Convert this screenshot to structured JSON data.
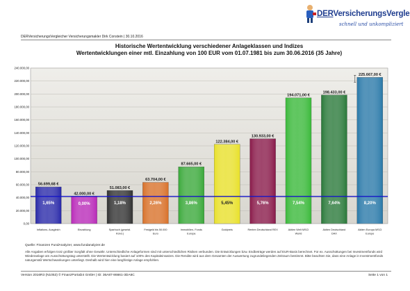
{
  "logo": {
    "prefix": "DER",
    "brand": "VersicherungsVergleicher",
    "tagline": "schnell und unkompliziert"
  },
  "header": {
    "company": "DERVersicherungsVergleicher Versicherungsmakler Dirk Constein | 30.10.2016"
  },
  "chart_data": {
    "type": "bar",
    "title": "Historische Wertentwicklung verschiedener Anlageklassen und Indizes",
    "subtitle": "Wertentwicklungen einer mtl. Einzahlung von 100 EUR vom 01.07.1981 bis zum 30.06.2016 (35 Jahre)",
    "ylim": [
      0,
      240000
    ],
    "yticks": [
      "0,00",
      "20.000,00",
      "40.000,00",
      "60.000,00",
      "80.000,00",
      "100.000,00",
      "120.000,00",
      "140.000,00",
      "160.000,00",
      "180.000,00",
      "200.000,00",
      "220.000,00",
      "240.000,00"
    ],
    "grid": true,
    "reference_line": 42000,
    "categories": [
      "Inflations- Ausgleich",
      "Einzahlung",
      "Sparbuch (gesetzl. Künd.)",
      "Festgeld bis 50.000 Euro",
      "Immobilien- Fonds Europa",
      "Goldpreis",
      "Renten Deutschland REX",
      "Aktien Welt MSCI World",
      "Aktien Deutschland DAX",
      "Aktien Europa MSCI Europe"
    ],
    "values": [
      56699.68,
      42000,
      51083,
      63704,
      87665,
      122384,
      130933,
      194071,
      198433,
      225667
    ],
    "value_labels": [
      "56.699,68 €",
      "42.000,00 €",
      "51.083,00 €",
      "63.704,00 €",
      "87.665,00 €",
      "122.384,00 €",
      "130.933,00 €",
      "194.071,00 €",
      "198.433,00 €",
      "225.667,00 €"
    ],
    "rates": [
      "1,65%",
      "0,00%",
      "1,18%",
      "2,26%",
      "3,86%",
      "5,45%",
      "5,76%",
      "7,54%",
      "7,64%",
      "8,20%"
    ],
    "colors": [
      "#2828a8",
      "#b828b8",
      "#303030",
      "#d87028",
      "#38a838",
      "#e8e028",
      "#881848",
      "#38b838",
      "#287838",
      "#2878a8"
    ]
  },
  "footer": {
    "source": "Quelle: Finanzen FundAnalyzer, www.fundanalyzer.de",
    "disclaimer": "Alle Angaben erfolgen trotz größter Sorgfalt ohne Gewähr. Unterschiedliche Anlageformen sind mit unterschiedlichen Risiken verbunden. Die Entwicklungen bzw. Endbeträge werden auf EUR-Basis berechnet. Für ex. Ausschüttungen bei Investmentfonds wird Wiederanlage am Ausschüttungstag unterstellt. Die Wertentwicklung basiert auf 100% des Kapitaleinsatzes. Die Rendite wird aus dem Gesamten der Auswertung zugrundeliegenden Zeitraum bestimmt. Bitte beachten Sie, dass eine Anlage in Investmentfonds naturgemäß Wertschwankungen unterliegt. Deshalb wird hier eine langfristige Anlage empfohlen.",
    "version": "Version 2016R3 (N1053) © FinanzPortal24 GmbH | ID: 36A87-86661-3DA6C",
    "page": "Seite 1 von 1"
  }
}
